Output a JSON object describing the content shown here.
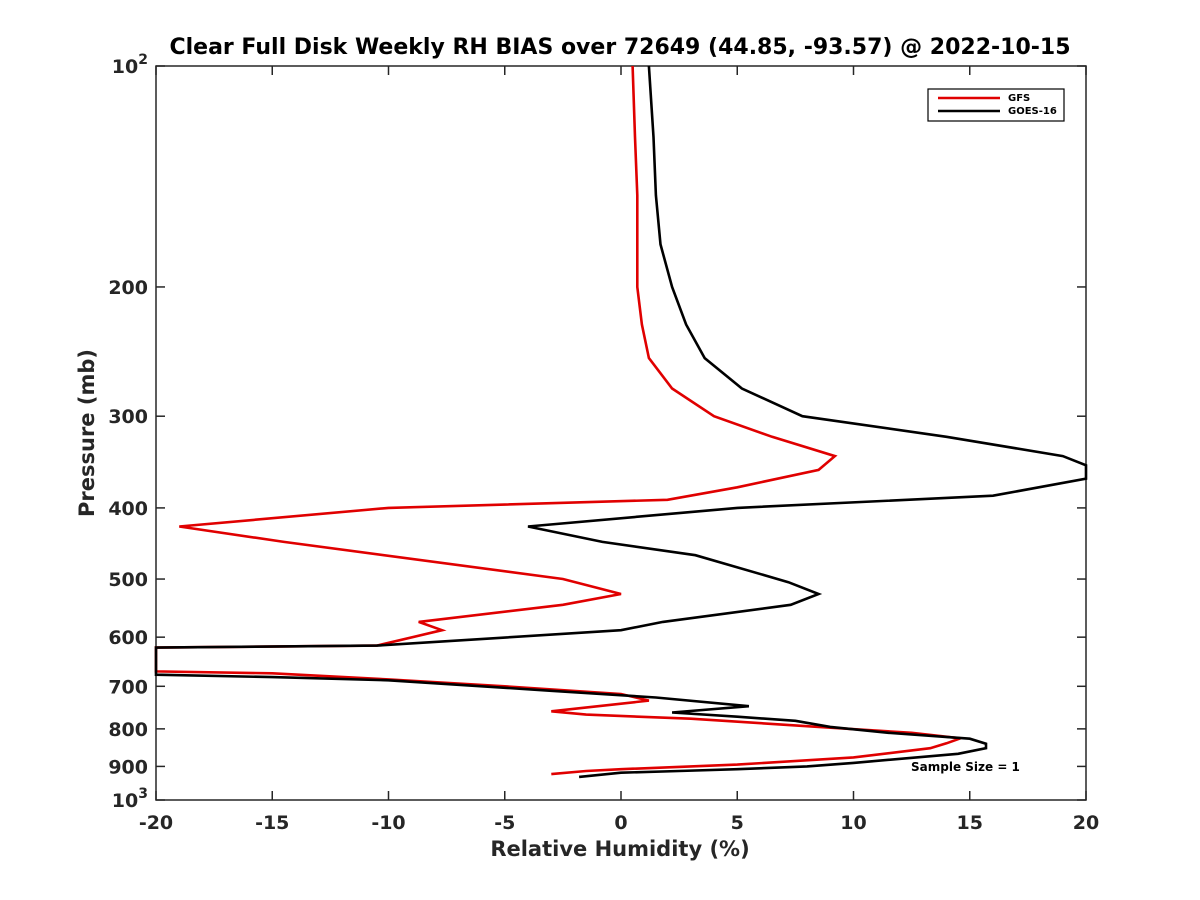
{
  "chart_data": {
    "type": "line",
    "title": "Clear Full Disk Weekly RH BIAS over 72649 (44.85, -93.57) @ 2022-10-15",
    "xlabel": "Relative Humidity (%)",
    "ylabel": "Pressure (mb)",
    "xlim": [
      -20,
      20
    ],
    "ylim": [
      100,
      1000
    ],
    "y_scale": "log",
    "y_reversed": true,
    "x_ticks": [
      {
        "value": -20,
        "label": "-20"
      },
      {
        "value": -15,
        "label": "-15"
      },
      {
        "value": -10,
        "label": "-10"
      },
      {
        "value": -5,
        "label": "-5"
      },
      {
        "value": 0,
        "label": "0"
      },
      {
        "value": 5,
        "label": "5"
      },
      {
        "value": 10,
        "label": "10"
      },
      {
        "value": 15,
        "label": "15"
      },
      {
        "value": 20,
        "label": "20"
      }
    ],
    "y_ticks": [
      {
        "value": 100,
        "base": "10",
        "exp": "2"
      },
      {
        "value": 200,
        "base": "200",
        "exp": ""
      },
      {
        "value": 300,
        "base": "300",
        "exp": ""
      },
      {
        "value": 400,
        "base": "400",
        "exp": ""
      },
      {
        "value": 500,
        "base": "500",
        "exp": ""
      },
      {
        "value": 600,
        "base": "600",
        "exp": ""
      },
      {
        "value": 700,
        "base": "700",
        "exp": ""
      },
      {
        "value": 800,
        "base": "800",
        "exp": ""
      },
      {
        "value": 900,
        "base": "900",
        "exp": ""
      },
      {
        "value": 1000,
        "base": "10",
        "exp": "3"
      }
    ],
    "grid": false,
    "legend_position": "top-right",
    "annotation": "Sample Size = 1",
    "series": [
      {
        "name": "GFS",
        "color": "#e00000",
        "points": [
          [
            0.5,
            100
          ],
          [
            0.6,
            125
          ],
          [
            0.7,
            150
          ],
          [
            0.7,
            175
          ],
          [
            0.7,
            200
          ],
          [
            0.9,
            225
          ],
          [
            1.2,
            250
          ],
          [
            2.2,
            275
          ],
          [
            4.0,
            300
          ],
          [
            6.5,
            320
          ],
          [
            9.2,
            340
          ],
          [
            8.5,
            355
          ],
          [
            5.0,
            375
          ],
          [
            2.0,
            390
          ],
          [
            -10.0,
            400
          ],
          [
            -19.0,
            424
          ],
          [
            -14.5,
            445
          ],
          [
            -2.5,
            500
          ],
          [
            0.0,
            524
          ],
          [
            -2.5,
            542
          ],
          [
            -8.7,
            572
          ],
          [
            -7.7,
            587
          ],
          [
            -10.5,
            616
          ],
          [
            -20.0,
            620
          ],
          [
            -20.0,
            668
          ],
          [
            -15.0,
            672
          ],
          [
            -10.0,
            685
          ],
          [
            -5.0,
            700
          ],
          [
            0.0,
            717
          ],
          [
            1.2,
            732
          ],
          [
            -3.0,
            757
          ],
          [
            -1.5,
            765
          ],
          [
            3.0,
            775
          ],
          [
            8.5,
            795
          ],
          [
            12.5,
            810
          ],
          [
            14.6,
            824
          ],
          [
            14.0,
            837
          ],
          [
            13.3,
            850
          ],
          [
            10.0,
            875
          ],
          [
            5.0,
            895
          ],
          [
            0.0,
            908
          ],
          [
            -1.5,
            913
          ],
          [
            -3.0,
            922
          ]
        ]
      },
      {
        "name": "GOES-16",
        "color": "#000000",
        "points": [
          [
            1.2,
            100
          ],
          [
            1.4,
            125
          ],
          [
            1.5,
            150
          ],
          [
            1.7,
            175
          ],
          [
            2.2,
            200
          ],
          [
            2.8,
            225
          ],
          [
            3.6,
            250
          ],
          [
            5.2,
            275
          ],
          [
            7.8,
            300
          ],
          [
            14.0,
            320
          ],
          [
            19.0,
            340
          ],
          [
            20.0,
            350
          ],
          [
            20.0,
            365
          ],
          [
            16.0,
            385
          ],
          [
            5.0,
            400
          ],
          [
            -4.0,
            424
          ],
          [
            -0.8,
            445
          ],
          [
            3.2,
            464
          ],
          [
            7.2,
            505
          ],
          [
            8.5,
            524
          ],
          [
            7.3,
            542
          ],
          [
            1.8,
            572
          ],
          [
            0.0,
            587
          ],
          [
            -10.5,
            616
          ],
          [
            -20.0,
            620
          ],
          [
            -20.0,
            675
          ],
          [
            -15.0,
            680
          ],
          [
            -10.0,
            687
          ],
          [
            -3.0,
            710
          ],
          [
            1.5,
            725
          ],
          [
            5.5,
            745
          ],
          [
            2.2,
            760
          ],
          [
            5.0,
            770
          ],
          [
            7.5,
            780
          ],
          [
            9.0,
            795
          ],
          [
            11.5,
            810
          ],
          [
            15.0,
            825
          ],
          [
            15.7,
            838
          ],
          [
            15.7,
            850
          ],
          [
            14.5,
            865
          ],
          [
            10.0,
            890
          ],
          [
            8.0,
            900
          ],
          [
            5.0,
            908
          ],
          [
            2.5,
            913
          ],
          [
            0.0,
            918
          ],
          [
            -1.8,
            930
          ]
        ]
      }
    ]
  }
}
